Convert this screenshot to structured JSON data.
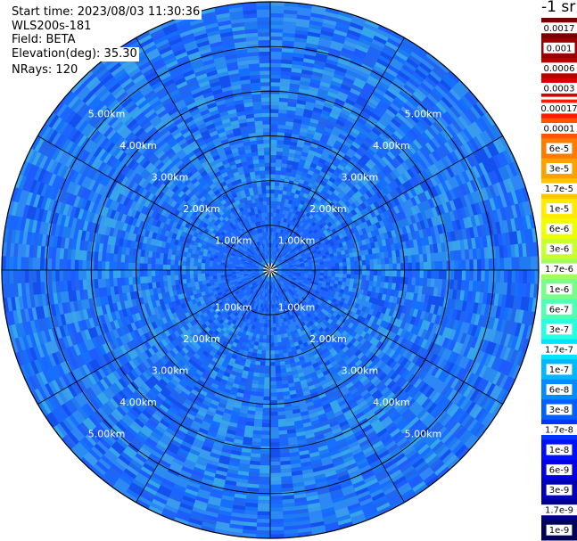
{
  "info": {
    "start_time": "Start time: 2023/08/03 11:30:36",
    "instrument": "WLS200s-181",
    "field": "Field: BETA",
    "elevation": "Elevation(deg): 35.30",
    "nrays": "NRays: 120"
  },
  "colorbar": {
    "units": "-1 sr",
    "labels": [
      "0.0017",
      "0.001",
      "0.0006",
      "0.0003",
      "0.00017",
      "0.0001",
      "6e-5",
      "3e-5",
      "1.7e-5",
      "1e-5",
      "6e-6",
      "3e-6",
      "1.7e-6",
      "1e-6",
      "6e-7",
      "3e-7",
      "1.7e-7",
      "1e-7",
      "6e-8",
      "3e-8",
      "1.7e-8",
      "1e-8",
      "6e-9",
      "3e-9",
      "1.7e-9",
      "1e-9"
    ],
    "colors": [
      "#7a0000",
      "#990000",
      "#b80000",
      "#d60000",
      "#ff1a00",
      "#ff5500",
      "#ff7a00",
      "#ff9f00",
      "#ffc400",
      "#ffea00",
      "#f0ff00",
      "#c8ff2e",
      "#a0ff5a",
      "#78ff88",
      "#50ffb4",
      "#28ffe0",
      "#00e4ff",
      "#00b8ff",
      "#008cff",
      "#0060ff",
      "#0034ff",
      "#0010ff",
      "#0000e0",
      "#0000b4",
      "#000088",
      "#00005c"
    ]
  },
  "chart_data": {
    "type": "heatmap",
    "plot_kind": "PPI polar scan",
    "field": "BETA",
    "elevation_deg": 35.3,
    "n_rays": 120,
    "range_rings_km": [
      1,
      2,
      3,
      4,
      5
    ],
    "ring_labels": [
      "1.00km",
      "2.00km",
      "3.00km",
      "4.00km",
      "5.00km"
    ],
    "max_range_km": 6.0,
    "azimuth_lines_deg": [
      0,
      30,
      60,
      90,
      120,
      150,
      180,
      210,
      240,
      270,
      300,
      330
    ],
    "dominant_value_range": [
      1e-08,
      1.7e-07
    ],
    "colorbar_scale": "log"
  }
}
